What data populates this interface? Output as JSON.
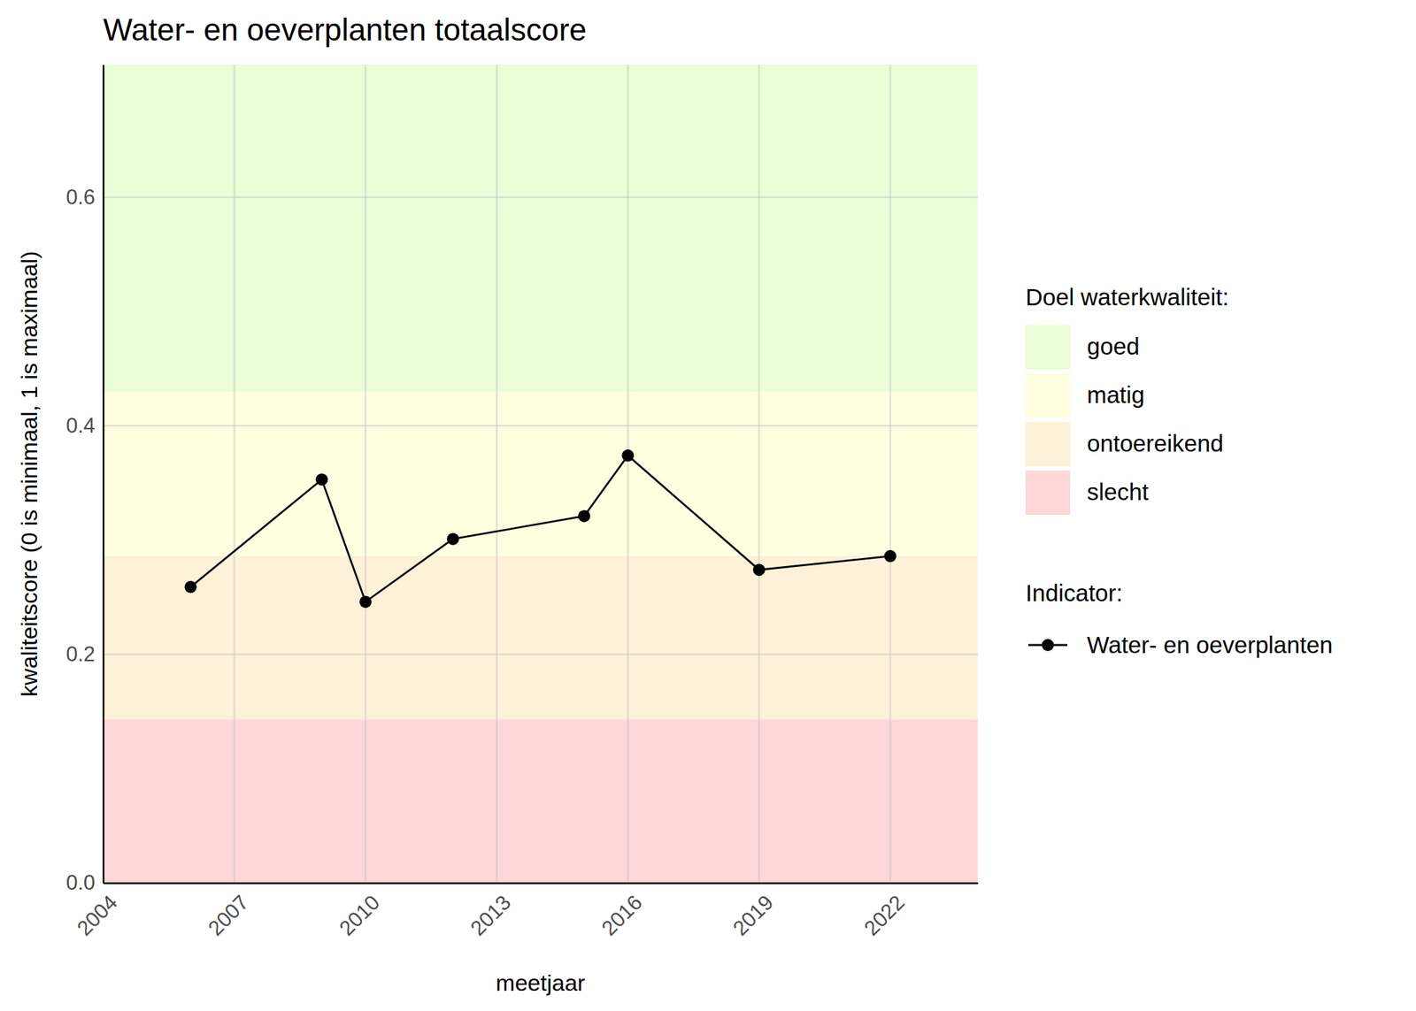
{
  "chart_data": {
    "type": "line",
    "title": "Water- en oeverplanten totaalscore",
    "x_label": "meetjaar",
    "y_label": "kwaliteitscore (0 is minimaal, 1 is maximaal)",
    "x": [
      2006,
      2009,
      2010,
      2012,
      2015,
      2016,
      2019,
      2022
    ],
    "series": [
      {
        "name": "Water- en oeverplanten",
        "color": "#000000",
        "marker": "circle",
        "line_style": "solid",
        "values": [
          0.259,
          0.353,
          0.246,
          0.301,
          0.321,
          0.374,
          0.274,
          0.286
        ]
      }
    ],
    "xlim": [
      2004,
      2024
    ],
    "xticks": [
      2004,
      2007,
      2010,
      2013,
      2016,
      2019,
      2022
    ],
    "ylim": [
      0,
      0.716
    ],
    "yticks": [
      {
        "value": 0,
        "label": "0.0"
      },
      0.2,
      0.4,
      0.6
    ],
    "grid": true,
    "legend_title": "Doel waterkwaliteit:",
    "series_legend_title": "Indicator:",
    "bands": [
      {
        "name": "goed",
        "color": "#e9fdd6",
        "from": 0.43,
        "to": 0.716
      },
      {
        "name": "matig",
        "color": "#fefee0",
        "from": 0.286,
        "to": 0.43
      },
      {
        "name": "ontoereikend",
        "color": "#fdf1d9",
        "from": 0.143,
        "to": 0.286
      },
      {
        "name": "slecht",
        "color": "#fed7d9",
        "from": 0,
        "to": 0.143
      }
    ]
  }
}
